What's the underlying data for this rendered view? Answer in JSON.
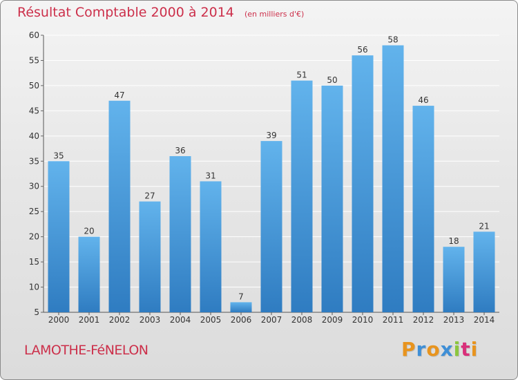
{
  "header": {
    "title": "Résultat Comptable 2000 à 2014",
    "unit": "(en milliers d'€)"
  },
  "footer": {
    "commune": "LAMOTHE-FéNELON",
    "logo_letters": [
      "P",
      "r",
      "o",
      "x",
      "i",
      "t",
      "i"
    ],
    "logo_colors": [
      "#e8941e",
      "#3f8fd6",
      "#e8941e",
      "#3f8fd6",
      "#8cc63e",
      "#d9307a",
      "#e8941e"
    ]
  },
  "colors": {
    "bar_light": "#62b3ec",
    "bar_dark": "#2f7cc1",
    "title": "#cc2f4a",
    "grid": "#ffffff"
  },
  "chart_data": {
    "type": "bar",
    "title": "Résultat Comptable 2000 à 2014",
    "subtitle": "(en milliers d'€)",
    "xlabel": "",
    "ylabel": "",
    "categories": [
      "2000",
      "2001",
      "2002",
      "2003",
      "2004",
      "2005",
      "2006",
      "2007",
      "2008",
      "2009",
      "2010",
      "2011",
      "2012",
      "2013",
      "2014"
    ],
    "values": [
      35,
      20,
      47,
      27,
      36,
      31,
      7,
      39,
      51,
      50,
      56,
      58,
      46,
      18,
      21
    ],
    "ylim": [
      5,
      60
    ],
    "yticks": [
      5,
      10,
      15,
      20,
      25,
      30,
      35,
      40,
      45,
      50,
      55,
      60
    ],
    "grid": true,
    "data_labels": true
  }
}
